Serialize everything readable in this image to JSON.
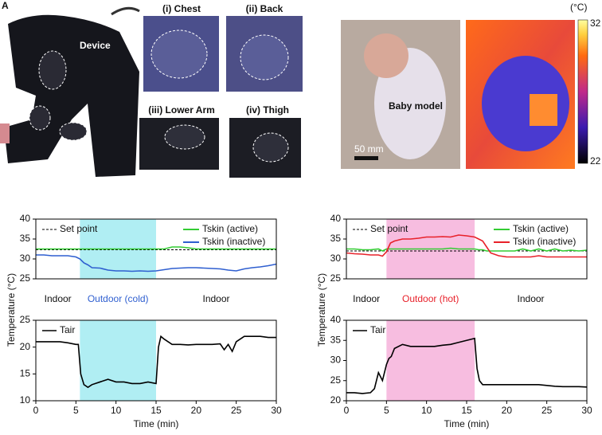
{
  "photos": {
    "panel": "A",
    "device": "Device",
    "chest": "(i) Chest",
    "back": "(ii) Back",
    "lower_arm": "(iii) Lower Arm",
    "thigh": "(iv) Thigh",
    "baby": "Baby model",
    "scale": "50 mm",
    "colorbar_unit": "(°C)",
    "colorbar_max": "32",
    "colorbar_min": "22"
  },
  "chart_data": [
    {
      "type": "line",
      "ylabel": "Temperature (°C)",
      "xlim": [
        0,
        30
      ],
      "ylim": [
        25,
        40
      ],
      "yticks": [
        25,
        30,
        35,
        40
      ],
      "shade": {
        "start": 5.5,
        "end": 15,
        "color": "#b0eef3"
      },
      "region_labels": [
        "Indoor",
        "Outdoor (cold)",
        "Indoor"
      ],
      "region_label_color": "#2f5fd0",
      "reference": {
        "name": "Set point",
        "value": 32.3
      },
      "x": [
        0,
        1,
        2,
        3,
        4,
        5,
        5.5,
        6,
        6.5,
        7,
        8,
        9,
        10,
        11,
        12,
        13,
        14,
        15,
        16,
        17,
        18,
        19,
        20,
        21,
        22,
        23,
        24,
        25,
        26,
        27,
        28,
        29,
        30
      ],
      "series": [
        {
          "name": "Tskin (active)",
          "color": "#33cc33",
          "values": [
            32.5,
            32.5,
            32.5,
            32.5,
            32.5,
            32.5,
            32.5,
            32.5,
            32.5,
            32.5,
            32.5,
            32.5,
            32.5,
            32.5,
            32.5,
            32.5,
            32.5,
            32.5,
            32.5,
            33,
            33,
            32.8,
            32.5,
            32.5,
            32.5,
            32.5,
            32.5,
            32.5,
            32.5,
            32.5,
            32.5,
            32.5,
            32.5
          ]
        },
        {
          "name": "Tskin (inactive)",
          "color": "#2f5fd0",
          "values": [
            31,
            31,
            30.8,
            30.8,
            30.8,
            30.5,
            30,
            29,
            28.5,
            27.8,
            27.7,
            27.2,
            27,
            27,
            26.9,
            27,
            26.9,
            27,
            27.3,
            27.6,
            27.7,
            27.8,
            27.8,
            27.7,
            27.6,
            27.5,
            27.2,
            27,
            27.5,
            27.8,
            28,
            28.3,
            28.7
          ]
        }
      ]
    },
    {
      "type": "line",
      "xlabel": "Time (min)",
      "xlim": [
        0,
        30
      ],
      "ylim": [
        10,
        25
      ],
      "xticks": [
        0,
        5,
        10,
        15,
        20,
        25,
        30
      ],
      "yticks": [
        10,
        15,
        20,
        25
      ],
      "shade": {
        "start": 5.5,
        "end": 15,
        "color": "#b0eef3"
      },
      "x": [
        0,
        1,
        2,
        3,
        4,
        5,
        5.3,
        5.6,
        6,
        6.5,
        7,
        8,
        9,
        10,
        11,
        12,
        13,
        14,
        15,
        15.3,
        15.6,
        16,
        17,
        18,
        19,
        20,
        21,
        22,
        23,
        23.5,
        24,
        24.5,
        25,
        26,
        27,
        28,
        29,
        30
      ],
      "series": [
        {
          "name": "Tair",
          "color": "#000000",
          "values": [
            21,
            21,
            21,
            21,
            20.8,
            20.5,
            20.5,
            15,
            13,
            12.5,
            13,
            13.5,
            14,
            13.5,
            13.5,
            13.2,
            13.2,
            13.5,
            13.2,
            20,
            22,
            21.5,
            20.5,
            20.5,
            20.4,
            20.5,
            20.5,
            20.5,
            20.6,
            19.5,
            20.5,
            19.2,
            21,
            22,
            22,
            22,
            21.8,
            21.8
          ]
        }
      ]
    },
    {
      "type": "line",
      "ylabel": "Temperature (°C)",
      "xlim": [
        0,
        30
      ],
      "ylim": [
        25,
        40
      ],
      "yticks": [
        25,
        30,
        35,
        40
      ],
      "shade": {
        "start": 5,
        "end": 16,
        "color": "#f7bde0"
      },
      "region_labels": [
        "Indoor",
        "Outdoor (hot)",
        "Indoor"
      ],
      "region_label_color": "#e8212a",
      "reference": {
        "name": "Set point",
        "value": 32
      },
      "x": [
        0,
        1,
        2,
        3,
        4,
        4.5,
        5,
        5.5,
        6,
        7,
        8,
        9,
        10,
        11,
        12,
        13,
        14,
        15,
        16,
        16.5,
        17,
        17.5,
        18,
        19,
        20,
        21,
        22,
        23,
        24,
        25,
        26,
        27,
        28,
        29,
        30
      ],
      "series": [
        {
          "name": "Tskin (active)",
          "color": "#33cc33",
          "values": [
            32.5,
            32.5,
            32.3,
            32.3,
            32.5,
            32,
            32.5,
            32.5,
            32.5,
            32.5,
            32.5,
            32.5,
            32.5,
            32.5,
            32.5,
            32.7,
            32.5,
            32.5,
            32.5,
            32.3,
            32.3,
            32,
            32,
            32,
            32,
            32,
            32.5,
            32,
            32.5,
            32,
            32.5,
            32,
            32.2,
            32,
            32.2
          ]
        },
        {
          "name": "Tskin (inactive)",
          "color": "#e8212a",
          "values": [
            31.5,
            31.3,
            31.2,
            31,
            31,
            30.7,
            31.8,
            34,
            34.5,
            35,
            35,
            35.2,
            35.5,
            35.5,
            35.6,
            35.5,
            36,
            35.8,
            35.5,
            35,
            34.5,
            33,
            31.5,
            30.8,
            30.5,
            30.5,
            30.5,
            30.5,
            30.8,
            30.5,
            30.5,
            30.5,
            30.5,
            30.5,
            30.5
          ]
        }
      ]
    },
    {
      "type": "line",
      "xlabel": "Time (min)",
      "xlim": [
        0,
        30
      ],
      "ylim": [
        20,
        40
      ],
      "xticks": [
        0,
        5,
        10,
        15,
        20,
        25,
        30
      ],
      "yticks": [
        20,
        25,
        30,
        35,
        40
      ],
      "shade": {
        "start": 5,
        "end": 16,
        "color": "#f7bde0"
      },
      "x": [
        0,
        1,
        2,
        3,
        3.5,
        4,
        4.5,
        5,
        5.3,
        5.6,
        6,
        7,
        8,
        9,
        10,
        11,
        12,
        13,
        14,
        15,
        16,
        16.3,
        16.6,
        17,
        18,
        19,
        20,
        21,
        22,
        23,
        24,
        25,
        26,
        27,
        28,
        29,
        30
      ],
      "series": [
        {
          "name": "Tair",
          "color": "#000000",
          "values": [
            22,
            22,
            21.8,
            22,
            23,
            27,
            25,
            29,
            30.5,
            31,
            33,
            34,
            33.5,
            33.5,
            33.5,
            33.5,
            33.8,
            34,
            34.5,
            35,
            35.5,
            28,
            25,
            24,
            24,
            24,
            24,
            24,
            24,
            24,
            24,
            23.8,
            23.6,
            23.5,
            23.5,
            23.5,
            23.4
          ]
        }
      ]
    }
  ]
}
